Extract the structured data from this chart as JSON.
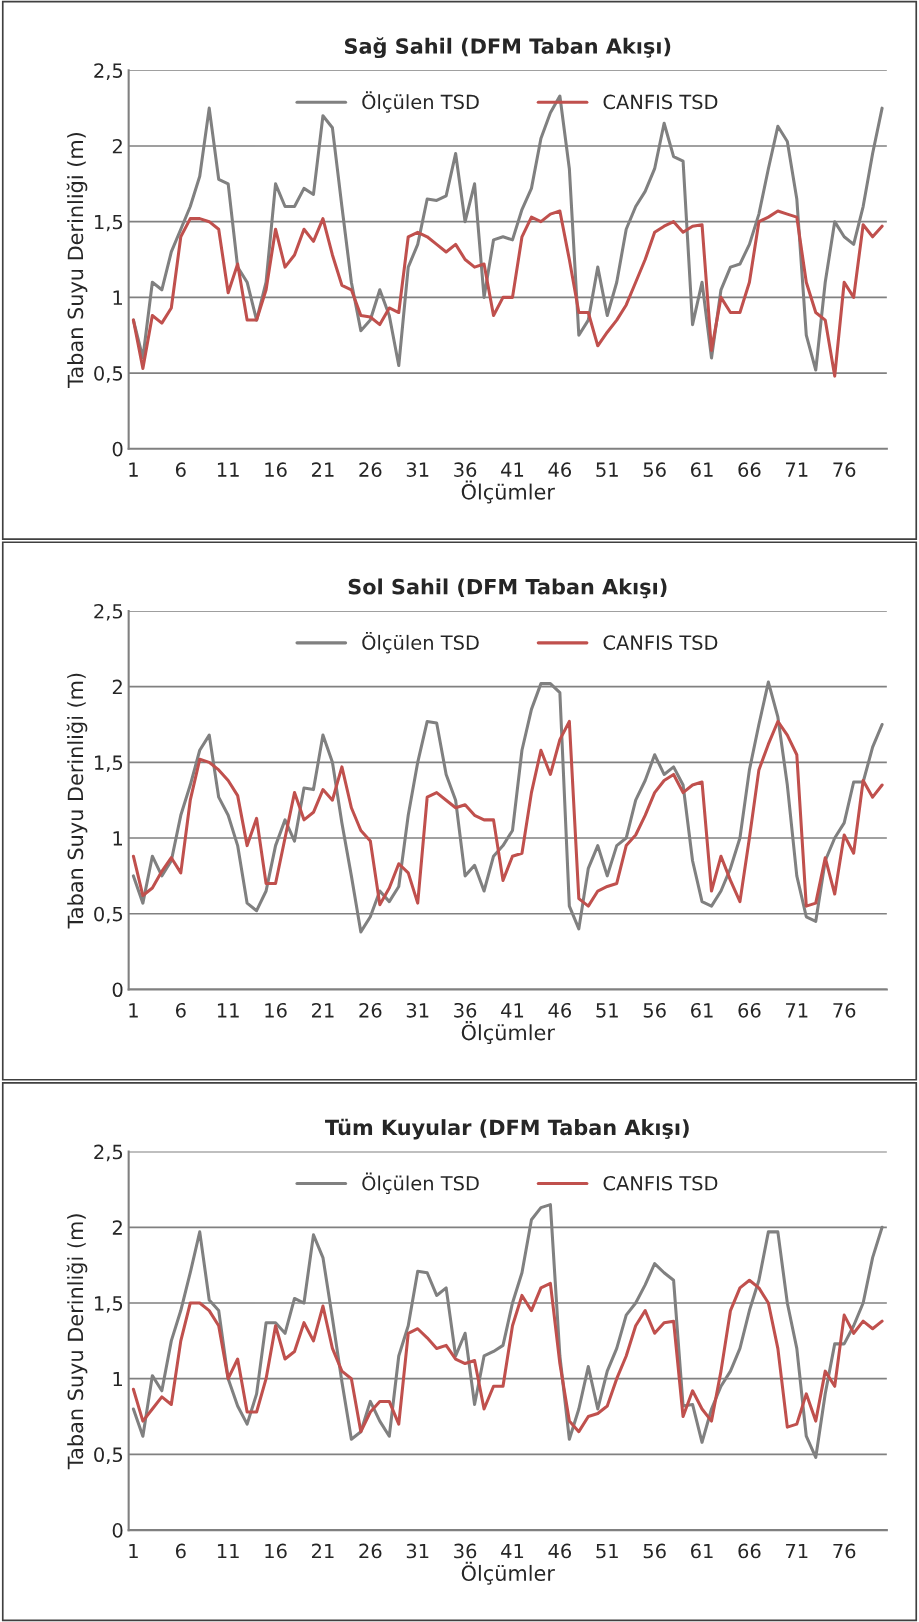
{
  "chart_data": [
    {
      "type": "line",
      "title": "Sağ Sahil (DFM Taban Akışı)",
      "xlabel": "Ölçümler",
      "ylabel": "Taban Suyu Derinliği (m)",
      "categories": [
        "1",
        null,
        null,
        null,
        null,
        "6",
        null,
        null,
        null,
        null,
        "11",
        null,
        null,
        null,
        null,
        "16",
        null,
        null,
        null,
        null,
        "21",
        null,
        null,
        null,
        null,
        "26",
        null,
        null,
        null,
        null,
        "31",
        null,
        null,
        null,
        null,
        "36",
        null,
        null,
        null,
        null,
        "41",
        null,
        null,
        null,
        null,
        "46",
        null,
        null,
        null,
        null,
        "51",
        null,
        null,
        null,
        null,
        "56",
        null,
        null,
        null,
        null,
        "61",
        null,
        null,
        null,
        null,
        "66",
        null,
        null,
        null,
        null,
        "71",
        null,
        null,
        null,
        null,
        "76",
        null,
        null,
        null,
        null
      ],
      "ylim": [
        0,
        2.5
      ],
      "yticks": [
        0,
        {
          "value": 0.5,
          "label": "0,5"
        },
        1,
        {
          "value": 1.5,
          "label": "1,5"
        },
        2,
        {
          "value": 2.5,
          "label": "2,5"
        }
      ],
      "grid": "y",
      "legend": "top",
      "series": [
        {
          "name": "Ölçülen TSD",
          "color": "#808080",
          "values": [
            0.85,
            0.6,
            1.1,
            1.05,
            1.3,
            1.45,
            1.6,
            1.8,
            2.25,
            1.78,
            1.75,
            1.2,
            1.1,
            0.85,
            1.1,
            1.75,
            1.6,
            1.6,
            1.72,
            1.68,
            2.2,
            2.12,
            1.6,
            1.1,
            0.78,
            0.85,
            1.05,
            0.88,
            0.55,
            1.2,
            1.35,
            1.65,
            1.64,
            1.67,
            1.95,
            1.5,
            1.75,
            1.0,
            1.38,
            1.4,
            1.38,
            1.58,
            1.72,
            2.05,
            2.22,
            2.33,
            1.85,
            0.75,
            0.85,
            1.2,
            0.88,
            1.1,
            1.45,
            1.6,
            1.7,
            1.85,
            2.15,
            1.93,
            1.9,
            0.82,
            1.1,
            0.6,
            1.05,
            1.2,
            1.22,
            1.35,
            1.55,
            1.85,
            2.13,
            2.03,
            1.65,
            0.75,
            0.52,
            1.1,
            1.5,
            1.4,
            1.35,
            1.6,
            1.95,
            2.25
          ]
        },
        {
          "name": "CANFIS TSD",
          "color": "#c0504d",
          "values": [
            0.85,
            0.53,
            0.88,
            0.83,
            0.93,
            1.4,
            1.52,
            1.52,
            1.5,
            1.45,
            1.03,
            1.22,
            0.85,
            0.85,
            1.05,
            1.45,
            1.2,
            1.28,
            1.45,
            1.37,
            1.52,
            1.28,
            1.08,
            1.05,
            0.88,
            0.87,
            0.82,
            0.93,
            0.9,
            1.4,
            1.43,
            1.4,
            1.35,
            1.3,
            1.35,
            1.25,
            1.2,
            1.22,
            0.88,
            1.0,
            1.0,
            1.4,
            1.53,
            1.5,
            1.55,
            1.57,
            1.25,
            0.9,
            0.9,
            0.68,
            0.77,
            0.85,
            0.95,
            1.1,
            1.25,
            1.43,
            1.47,
            1.5,
            1.43,
            1.47,
            1.48,
            0.65,
            1.0,
            0.9,
            0.9,
            1.1,
            1.5,
            1.53,
            1.57,
            1.55,
            1.53,
            1.1,
            0.9,
            0.85,
            0.48,
            1.1,
            1.0,
            1.48,
            1.4,
            1.47
          ]
        }
      ]
    },
    {
      "type": "line",
      "title": "Sol Sahil (DFM Taban Akışı)",
      "xlabel": "Ölçümler",
      "ylabel": "Taban Suyu Derinliği (m)",
      "categories": [
        "1",
        null,
        null,
        null,
        null,
        "6",
        null,
        null,
        null,
        null,
        "11",
        null,
        null,
        null,
        null,
        "16",
        null,
        null,
        null,
        null,
        "21",
        null,
        null,
        null,
        null,
        "26",
        null,
        null,
        null,
        null,
        "31",
        null,
        null,
        null,
        null,
        "36",
        null,
        null,
        null,
        null,
        "41",
        null,
        null,
        null,
        null,
        "46",
        null,
        null,
        null,
        null,
        "51",
        null,
        null,
        null,
        null,
        "56",
        null,
        null,
        null,
        null,
        "61",
        null,
        null,
        null,
        null,
        "66",
        null,
        null,
        null,
        null,
        "71",
        null,
        null,
        null,
        null,
        "76",
        null,
        null,
        null,
        null
      ],
      "ylim": [
        0,
        2.5
      ],
      "yticks": [
        0,
        {
          "value": 0.5,
          "label": "0,5"
        },
        1,
        {
          "value": 1.5,
          "label": "1,5"
        },
        2,
        {
          "value": 2.5,
          "label": "2,5"
        }
      ],
      "grid": "y",
      "legend": "top",
      "series": [
        {
          "name": "Ölçülen TSD",
          "color": "#808080",
          "values": [
            0.75,
            0.57,
            0.88,
            0.75,
            0.85,
            1.15,
            1.35,
            1.58,
            1.68,
            1.27,
            1.15,
            0.95,
            0.57,
            0.52,
            0.65,
            0.95,
            1.12,
            0.98,
            1.33,
            1.32,
            1.68,
            1.5,
            1.1,
            0.75,
            0.38,
            0.48,
            0.65,
            0.58,
            0.68,
            1.15,
            1.5,
            1.77,
            1.76,
            1.42,
            1.25,
            0.75,
            0.82,
            0.65,
            0.88,
            0.95,
            1.05,
            1.58,
            1.85,
            2.02,
            2.02,
            1.96,
            0.55,
            0.4,
            0.8,
            0.95,
            0.75,
            0.95,
            1.0,
            1.25,
            1.38,
            1.55,
            1.42,
            1.47,
            1.35,
            0.85,
            0.58,
            0.55,
            0.65,
            0.8,
            1.0,
            1.45,
            1.75,
            2.03,
            1.8,
            1.35,
            0.75,
            0.48,
            0.45,
            0.85,
            1.0,
            1.1,
            1.37,
            1.37,
            1.6,
            1.75
          ]
        },
        {
          "name": "CANFIS TSD",
          "color": "#c0504d",
          "values": [
            0.88,
            0.62,
            0.67,
            0.78,
            0.87,
            0.77,
            1.25,
            1.52,
            1.5,
            1.45,
            1.38,
            1.28,
            0.95,
            1.13,
            0.7,
            0.7,
            1.0,
            1.3,
            1.12,
            1.17,
            1.32,
            1.25,
            1.47,
            1.2,
            1.05,
            0.98,
            0.56,
            0.67,
            0.83,
            0.77,
            0.57,
            1.27,
            1.3,
            1.25,
            1.2,
            1.22,
            1.15,
            1.12,
            1.12,
            0.72,
            0.88,
            0.9,
            1.3,
            1.58,
            1.42,
            1.65,
            1.77,
            0.6,
            0.55,
            0.65,
            0.68,
            0.7,
            0.95,
            1.02,
            1.15,
            1.3,
            1.38,
            1.42,
            1.3,
            1.35,
            1.37,
            0.65,
            0.88,
            0.72,
            0.58,
            1.0,
            1.45,
            1.62,
            1.77,
            1.68,
            1.55,
            0.55,
            0.57,
            0.87,
            0.63,
            1.02,
            0.9,
            1.38,
            1.27,
            1.35
          ]
        }
      ]
    },
    {
      "type": "line",
      "title": "Tüm Kuyular (DFM Taban Akışı)",
      "xlabel": "Ölçümler",
      "ylabel": "Taban Suyu Derinliği (m)",
      "categories": [
        "1",
        null,
        null,
        null,
        null,
        "6",
        null,
        null,
        null,
        null,
        "11",
        null,
        null,
        null,
        null,
        "16",
        null,
        null,
        null,
        null,
        "21",
        null,
        null,
        null,
        null,
        "26",
        null,
        null,
        null,
        null,
        "31",
        null,
        null,
        null,
        null,
        "36",
        null,
        null,
        null,
        null,
        "41",
        null,
        null,
        null,
        null,
        "46",
        null,
        null,
        null,
        null,
        "51",
        null,
        null,
        null,
        null,
        "56",
        null,
        null,
        null,
        null,
        "61",
        null,
        null,
        null,
        null,
        "66",
        null,
        null,
        null,
        null,
        "71",
        null,
        null,
        null,
        null,
        "76",
        null,
        null,
        null,
        null
      ],
      "ylim": [
        0,
        2.5
      ],
      "yticks": [
        0,
        {
          "value": 0.5,
          "label": "0,5"
        },
        1,
        {
          "value": 1.5,
          "label": "1,5"
        },
        2,
        {
          "value": 2.5,
          "label": "2,5"
        }
      ],
      "grid": "y",
      "legend": "top",
      "series": [
        {
          "name": "Ölçülen TSD",
          "color": "#808080",
          "values": [
            0.8,
            0.62,
            1.02,
            0.92,
            1.25,
            1.45,
            1.7,
            1.97,
            1.52,
            1.45,
            1.0,
            0.82,
            0.7,
            0.9,
            1.37,
            1.37,
            1.3,
            1.53,
            1.5,
            1.95,
            1.8,
            1.4,
            0.98,
            0.6,
            0.65,
            0.85,
            0.72,
            0.62,
            1.15,
            1.35,
            1.71,
            1.7,
            1.55,
            1.6,
            1.15,
            1.3,
            0.83,
            1.15,
            1.18,
            1.22,
            1.5,
            1.7,
            2.05,
            2.13,
            2.15,
            1.15,
            0.6,
            0.8,
            1.08,
            0.8,
            1.05,
            1.2,
            1.42,
            1.5,
            1.62,
            1.76,
            1.7,
            1.65,
            0.82,
            0.83,
            0.58,
            0.8,
            0.95,
            1.05,
            1.2,
            1.45,
            1.65,
            1.97,
            1.97,
            1.5,
            1.2,
            0.62,
            0.48,
            0.9,
            1.23,
            1.23,
            1.35,
            1.5,
            1.8,
            2.0
          ]
        },
        {
          "name": "CANFIS TSD",
          "color": "#c0504d",
          "values": [
            0.93,
            0.72,
            0.8,
            0.88,
            0.83,
            1.25,
            1.5,
            1.5,
            1.45,
            1.35,
            1.0,
            1.13,
            0.78,
            0.78,
            1.0,
            1.35,
            1.13,
            1.18,
            1.37,
            1.25,
            1.48,
            1.2,
            1.05,
            1.0,
            0.65,
            0.78,
            0.85,
            0.85,
            0.7,
            1.3,
            1.33,
            1.27,
            1.2,
            1.22,
            1.13,
            1.1,
            1.12,
            0.8,
            0.95,
            0.95,
            1.35,
            1.55,
            1.45,
            1.6,
            1.63,
            1.1,
            0.72,
            0.65,
            0.75,
            0.77,
            0.82,
            1.0,
            1.15,
            1.35,
            1.45,
            1.3,
            1.37,
            1.38,
            0.75,
            0.92,
            0.8,
            0.72,
            1.05,
            1.45,
            1.6,
            1.65,
            1.6,
            1.5,
            1.2,
            0.68,
            0.7,
            0.9,
            0.72,
            1.05,
            0.95,
            1.42,
            1.3,
            1.38,
            1.33,
            1.38
          ]
        }
      ]
    }
  ]
}
